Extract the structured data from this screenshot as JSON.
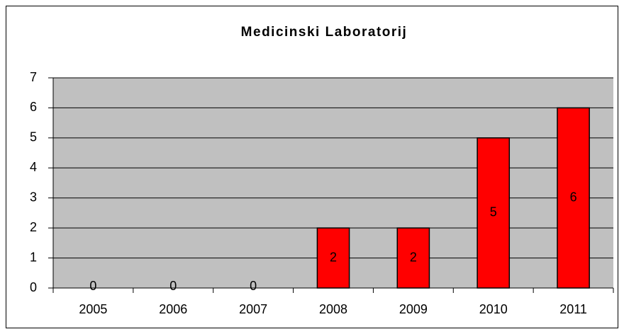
{
  "chart_data": {
    "type": "bar",
    "title": "Medicinski Laboratorij",
    "categories": [
      "2005",
      "2006",
      "2007",
      "2008",
      "2009",
      "2010",
      "2011"
    ],
    "values": [
      0,
      0,
      0,
      2,
      2,
      5,
      6
    ],
    "color": "#ff0000",
    "ylim": [
      0,
      7
    ],
    "yticks": [
      0,
      1,
      2,
      3,
      4,
      5,
      6,
      7
    ],
    "grid": true
  }
}
